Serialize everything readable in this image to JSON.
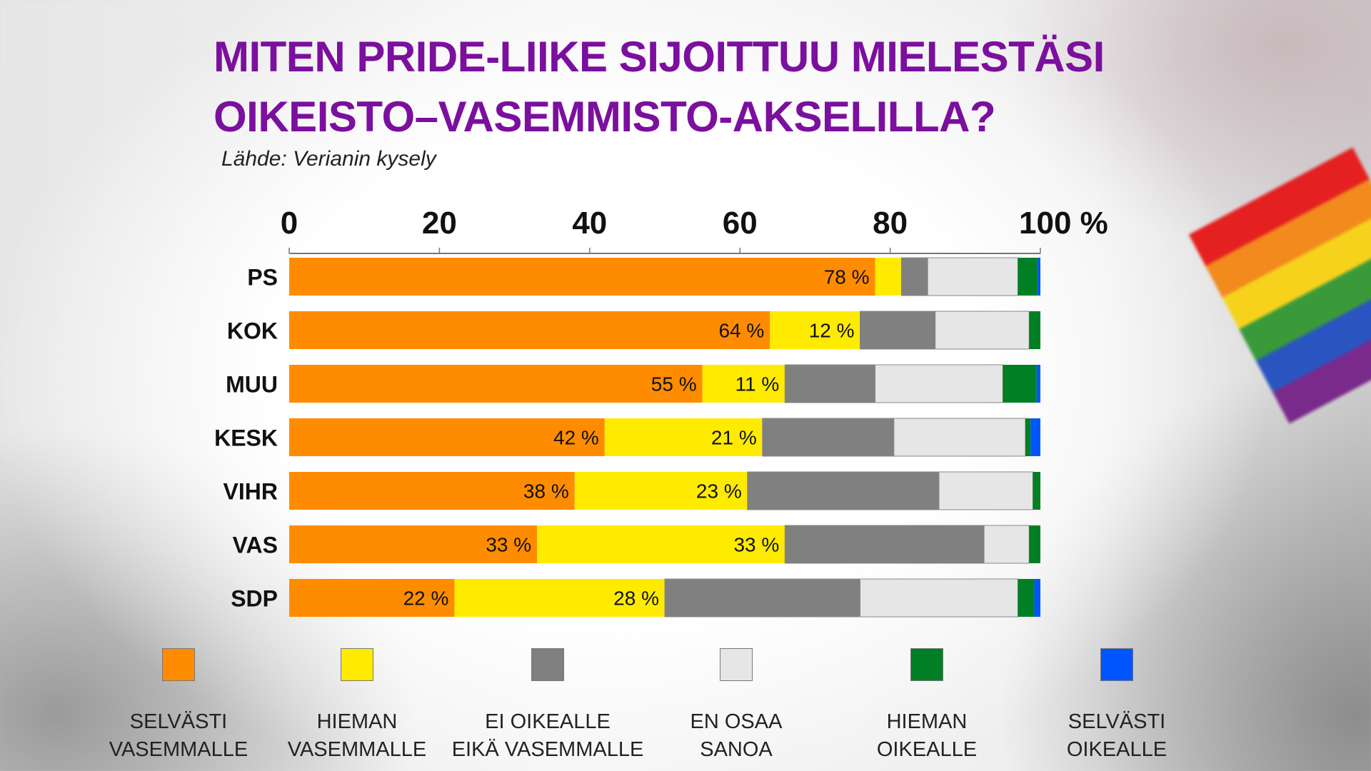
{
  "chart_data": {
    "type": "bar",
    "orientation": "horizontal",
    "stacked": true,
    "title": "MITEN PRIDE-LIIKE SIJOITTUU MIELESTÄSI OIKEISTO–VASEMMISTO-AKSELILLA?",
    "title_lines": [
      "MITEN PRIDE-LIIKE SIJOITTUU MIELESTÄSI",
      "OIKEISTO–VASEMMISTO-AKSELILLA?"
    ],
    "subtitle": "Lähde: Verianin kysely",
    "xlim": [
      0,
      100
    ],
    "xticks": [
      "0",
      "20",
      "40",
      "60",
      "80",
      "100 %"
    ],
    "categories": [
      "PS",
      "KOK",
      "MUU",
      "KESK",
      "VIHR",
      "VAS",
      "SDP"
    ],
    "series": [
      {
        "name": "SELVÄSTI VASEMMALLE",
        "color": "#ff8c00",
        "values": [
          78,
          64,
          55,
          42,
          38,
          33,
          22
        ],
        "labels": [
          "78 %",
          "64 %",
          "55 %",
          "42 %",
          "38 %",
          "33 %",
          "22 %"
        ]
      },
      {
        "name": "HIEMAN VASEMMALLE",
        "color": "#ffeb00",
        "values": [
          3.5,
          12,
          11,
          21,
          23,
          33,
          28
        ],
        "labels": [
          "",
          "12 %",
          "11 %",
          "21 %",
          "23 %",
          "33 %",
          "28 %"
        ]
      },
      {
        "name": "EI OIKEALLE EIKÄ VASEMMALLE",
        "color": "#808080",
        "values": [
          3.5,
          10,
          12,
          17.5,
          25.5,
          26.5,
          26
        ]
      },
      {
        "name": "EN OSAA SANOA",
        "color": "#e6e6e6",
        "values": [
          12,
          12.5,
          17,
          17.5,
          12.5,
          6,
          21
        ]
      },
      {
        "name": "HIEMAN OIKEALLE",
        "color": "#007f24",
        "values": [
          2.6,
          1.5,
          4.5,
          0.7,
          1,
          1.5,
          2.2
        ]
      },
      {
        "name": "SELVÄSTI OIKEALLE",
        "color": "#0055ff",
        "values": [
          0.4,
          0,
          0.5,
          1.3,
          0,
          0,
          0.8
        ]
      }
    ],
    "legend": {
      "placement": "bottom",
      "entries": [
        [
          "SELVÄSTI",
          "VASEMMALLE"
        ],
        [
          "HIEMAN",
          "VASEMMALLE"
        ],
        [
          "EI OIKEALLE",
          "EIKÄ VASEMMALLE"
        ],
        [
          "EN OSAA",
          "SANOA"
        ],
        [
          "HIEMAN",
          "OIKEALLE"
        ],
        [
          "SELVÄSTI",
          "OIKEALLE"
        ]
      ]
    },
    "grid": false
  },
  "colors": {
    "title": "#7b0f9e"
  }
}
